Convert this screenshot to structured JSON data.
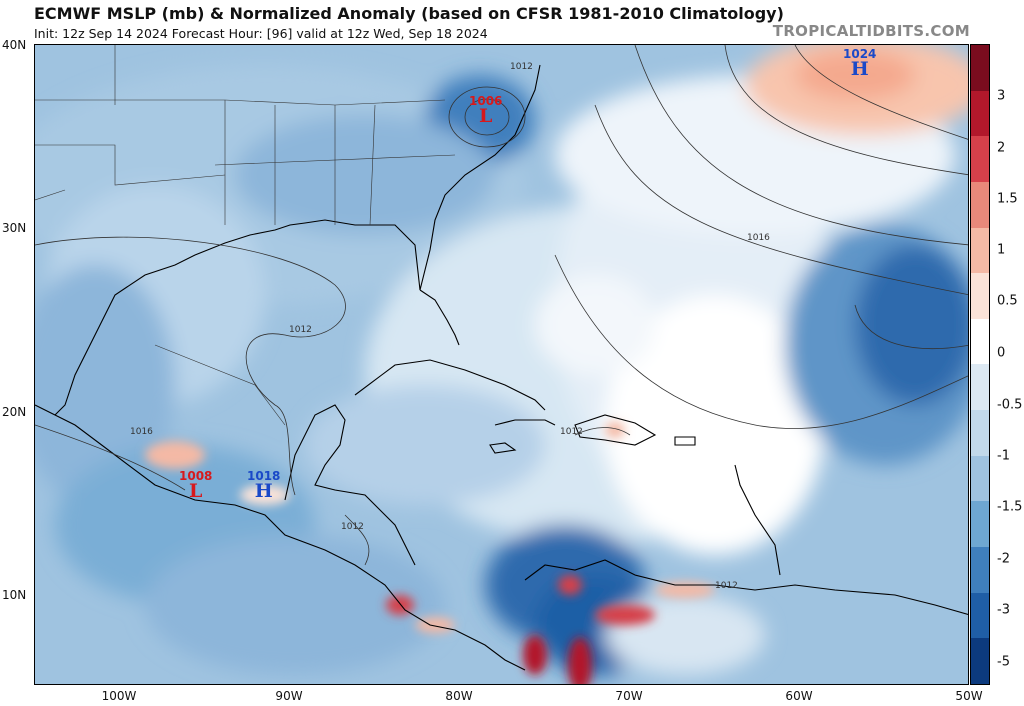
{
  "header": {
    "title": "ECMWF MSLP (mb) & Normalized Anomaly (based on CFSR 1981-2010 Climatology)",
    "subtitle": "Init: 12z Sep 14 2024   Forecast Hour: [96]   valid at 12z Wed, Sep 18 2024",
    "credit": "TROPICALTIDBITS.COM"
  },
  "axes": {
    "lat_labels": [
      "40N",
      "30N",
      "20N",
      "10N"
    ],
    "lon_labels": [
      "100W",
      "90W",
      "80W",
      "70W",
      "60W",
      "50W"
    ]
  },
  "colorbar": {
    "labels": [
      "3",
      "2",
      "1.5",
      "1",
      "0.5",
      "0",
      "-0.5",
      "-1",
      "-1.5",
      "-2",
      "-3",
      "-5"
    ],
    "colors_top_to_bottom": [
      "#7a0c1e",
      "#b2182b",
      "#d6404a",
      "#e8887a",
      "#f4b9a5",
      "#fbe3d8",
      "#ffffff",
      "#dde9f3",
      "#c2d9ea",
      "#9fc3e0",
      "#6ea7d1",
      "#3f7fbd",
      "#1f5ea6",
      "#0c3a7e"
    ]
  },
  "pressure_systems": [
    {
      "id": "low-carolina",
      "value": "1006",
      "letter": "L",
      "type": "low"
    },
    {
      "id": "high-atlantic",
      "value": "1024",
      "letter": "H",
      "type": "high"
    },
    {
      "id": "low-mexico",
      "value": "1008",
      "letter": "L",
      "type": "low"
    },
    {
      "id": "high-guatemala",
      "value": "1018",
      "letter": "H",
      "type": "high"
    }
  ],
  "isobar_labels": [
    "1012",
    "1016",
    "1012",
    "1016",
    "1012",
    "1012",
    "1012"
  ],
  "colors": {
    "low": "#d7191c",
    "high": "#1a49c8"
  }
}
